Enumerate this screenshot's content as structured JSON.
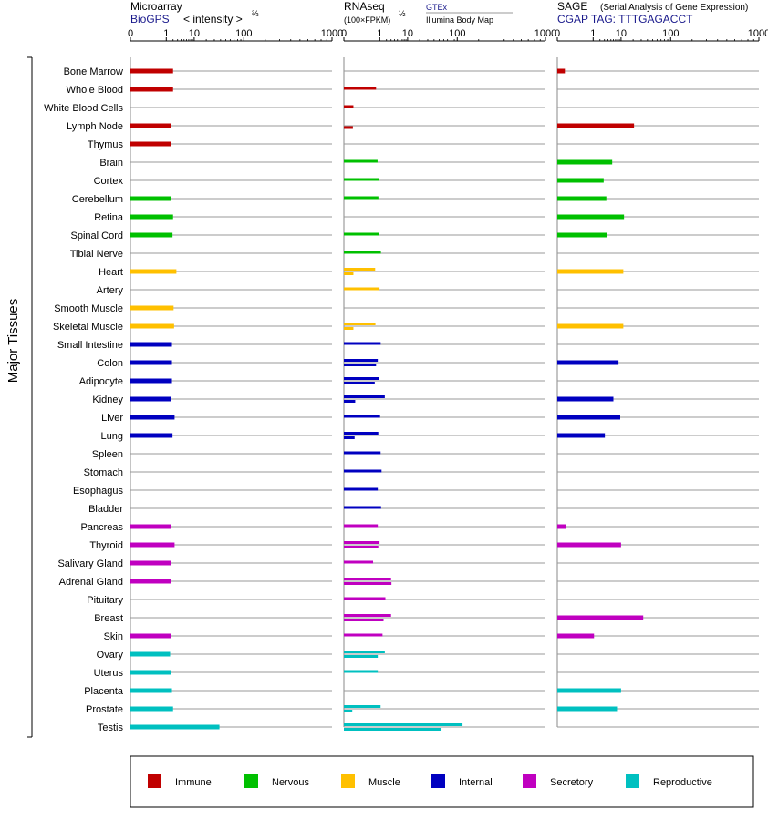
{
  "panels": {
    "microarray": {
      "title": "Microarray",
      "source": "BioGPS",
      "unit": "< intensity >",
      "unit_exp": "⅔"
    },
    "rnaseq": {
      "title": "RNAseq",
      "unit": "(100×FPKM)",
      "unit_exp": "½",
      "source1": "GTEx",
      "source2": "Illumina Body Map"
    },
    "sage": {
      "title": "SAGE",
      "subtitle": "(Serial Analysis of Gene Expression)",
      "tag": "CGAP TAG: TTTGAGACCT"
    }
  },
  "axis_ticks": [
    "0",
    "1",
    "10",
    "100",
    "1000"
  ],
  "group_label": "Major Tissues",
  "legend": [
    {
      "label": "Immune",
      "color": "#c00000"
    },
    {
      "label": "Nervous",
      "color": "#00c000"
    },
    {
      "label": "Muscle",
      "color": "#ffc000"
    },
    {
      "label": "Internal",
      "color": "#0000c0"
    },
    {
      "label": "Secretory",
      "color": "#c000c0"
    },
    {
      "label": "Reproductive",
      "color": "#00c0c0"
    }
  ],
  "chart_data": {
    "type": "bar",
    "scale": "power",
    "xlim": [
      0,
      1000
    ],
    "categories": [
      "Bone Marrow",
      "Whole Blood",
      "White Blood Cells",
      "Lymph Node",
      "Thymus",
      "Brain",
      "Cortex",
      "Cerebellum",
      "Retina",
      "Spinal Cord",
      "Tibial Nerve",
      "Heart",
      "Artery",
      "Smooth Muscle",
      "Skeletal Muscle",
      "Small Intestine",
      "Colon",
      "Adipocyte",
      "Kidney",
      "Liver",
      "Lung",
      "Spleen",
      "Stomach",
      "Esophagus",
      "Bladder",
      "Pancreas",
      "Thyroid",
      "Salivary Gland",
      "Adrenal Gland",
      "Pituitary",
      "Breast",
      "Skin",
      "Ovary",
      "Uterus",
      "Placenta",
      "Prostate",
      "Testis"
    ],
    "category_groups": [
      "Immune",
      "Immune",
      "Immune",
      "Immune",
      "Immune",
      "Nervous",
      "Nervous",
      "Nervous",
      "Nervous",
      "Nervous",
      "Nervous",
      "Muscle",
      "Muscle",
      "Muscle",
      "Muscle",
      "Internal",
      "Internal",
      "Internal",
      "Internal",
      "Internal",
      "Internal",
      "Internal",
      "Internal",
      "Internal",
      "Internal",
      "Secretory",
      "Secretory",
      "Secretory",
      "Secretory",
      "Secretory",
      "Secretory",
      "Secretory",
      "Reproductive",
      "Reproductive",
      "Reproductive",
      "Reproductive",
      "Reproductive"
    ],
    "microarray": [
      2.0,
      2.0,
      null,
      1.7,
      1.7,
      null,
      null,
      1.7,
      2.0,
      1.9,
      null,
      2.7,
      null,
      2.1,
      2.2,
      1.8,
      1.8,
      1.8,
      1.7,
      2.3,
      1.9,
      null,
      null,
      null,
      null,
      1.7,
      2.3,
      1.7,
      1.7,
      null,
      null,
      1.7,
      1.5,
      1.7,
      1.8,
      2.0,
      38
    ],
    "rnaseq_gtex": [
      null,
      0.65,
      0.005,
      null,
      null,
      0.78,
      0.92,
      0.86,
      null,
      0.88,
      1.14,
      0.58,
      0.98,
      null,
      0.6,
      1.11,
      0.8,
      0.92,
      1.7,
      1.04,
      0.85,
      1.1,
      1.22,
      0.8,
      1.16,
      0.8,
      0.98,
      0.44,
      3.0,
      1.8,
      3.0,
      1.35,
      1.7,
      0.8,
      null,
      1.1,
      120
    ],
    "rnaseq_ibm": [
      null,
      null,
      null,
      0.004,
      null,
      null,
      null,
      null,
      null,
      null,
      null,
      0.005,
      null,
      null,
      0.005,
      null,
      0.65,
      0.55,
      0.01,
      null,
      0.008,
      null,
      null,
      null,
      null,
      null,
      0.85,
      null,
      3.1,
      null,
      1.5,
      null,
      0.8,
      null,
      null,
      0.003,
      55
    ],
    "sage": [
      0.002,
      null,
      null,
      21,
      null,
      5.5,
      2.8,
      3.5,
      12,
      3.8,
      null,
      11.5,
      null,
      null,
      11.5,
      null,
      8.5,
      null,
      6.0,
      9.5,
      3.1,
      null,
      null,
      null,
      null,
      0.003,
      10,
      null,
      null,
      null,
      33,
      1.1,
      null,
      null,
      10,
      7.7,
      null
    ]
  }
}
